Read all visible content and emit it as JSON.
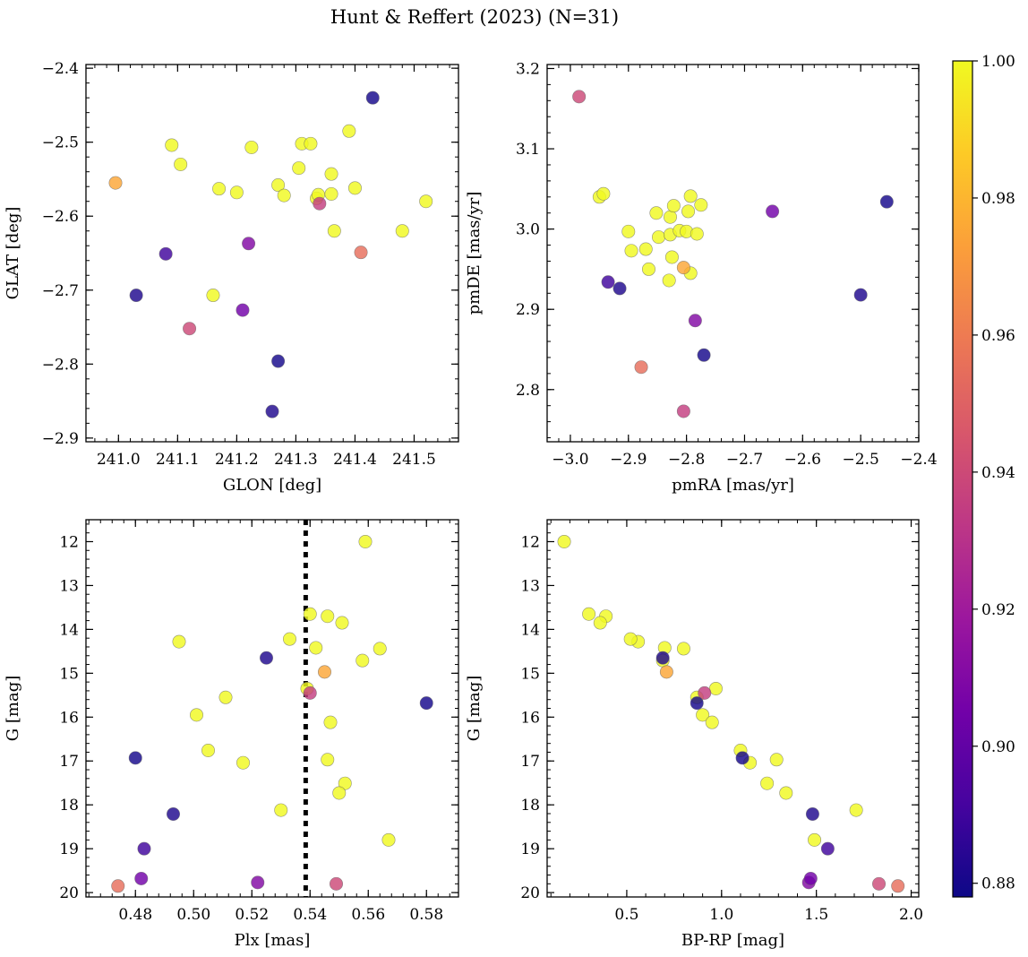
{
  "chart_data": {
    "title": "Hunt & Reffert (2023) (N=31)",
    "type": "scatter",
    "colormap": "plasma",
    "colorbar": {
      "range": [
        0.878,
        1.0
      ],
      "ticks": [
        0.88,
        0.9,
        0.92,
        0.94,
        0.96,
        0.98,
        1.0
      ],
      "tick_labels": [
        "0.88",
        "0.90",
        "0.92",
        "0.94",
        "0.96",
        "0.98",
        "1.00"
      ],
      "placement": "right"
    },
    "plasma_stops": [
      "#0d0887",
      "#46039f",
      "#7201a8",
      "#9c179e",
      "#bd3786",
      "#d8576b",
      "#ed7953",
      "#fb9f3a",
      "#fdca26",
      "#f0f921"
    ],
    "points": [
      {
        "glon": 241.43,
        "glat": -2.44,
        "pmra": -2.455,
        "pmde": 3.034,
        "plx": 0.58,
        "g": 15.68,
        "bprp": 0.87,
        "prob": 0.88
      },
      {
        "glon": 241.26,
        "glat": -2.864,
        "pmra": -2.5,
        "pmde": 2.918,
        "plx": 0.493,
        "g": 18.21,
        "bprp": 1.48,
        "prob": 0.882
      },
      {
        "glon": 241.27,
        "glat": -2.796,
        "pmra": -2.77,
        "pmde": 2.843,
        "plx": 0.48,
        "g": 16.93,
        "bprp": 1.11,
        "prob": 0.88
      },
      {
        "glon": 241.03,
        "glat": -2.707,
        "pmra": -2.915,
        "pmde": 2.926,
        "plx": 0.525,
        "g": 14.65,
        "bprp": 0.69,
        "prob": 0.882
      },
      {
        "glon": 241.08,
        "glat": -2.651,
        "pmra": -2.935,
        "pmde": 2.934,
        "plx": 0.483,
        "g": 19.0,
        "bprp": 1.56,
        "prob": 0.89
      },
      {
        "glon": 241.21,
        "glat": -2.727,
        "pmra": -2.652,
        "pmde": 3.022,
        "plx": 0.482,
        "g": 19.68,
        "bprp": 1.47,
        "prob": 0.905
      },
      {
        "glon": 241.22,
        "glat": -2.637,
        "pmra": -2.785,
        "pmde": 2.886,
        "plx": 0.522,
        "g": 19.77,
        "bprp": 1.46,
        "prob": 0.91
      },
      {
        "glon": 241.34,
        "glat": -2.583,
        "pmra": -2.805,
        "pmde": 2.773,
        "plx": 0.54,
        "g": 15.45,
        "bprp": 0.91,
        "prob": 0.935
      },
      {
        "glon": 241.12,
        "glat": -2.752,
        "pmra": -2.985,
        "pmde": 3.165,
        "plx": 0.549,
        "g": 19.8,
        "bprp": 1.83,
        "prob": 0.94
      },
      {
        "glon": 241.41,
        "glat": -2.649,
        "pmra": -2.878,
        "pmde": 2.828,
        "plx": 0.474,
        "g": 19.85,
        "bprp": 1.93,
        "prob": 0.955
      },
      {
        "glon": 240.995,
        "glat": -2.555,
        "pmra": -2.805,
        "pmde": 2.952,
        "plx": 0.545,
        "g": 14.97,
        "bprp": 0.71,
        "prob": 0.975
      },
      {
        "glon": 241.09,
        "glat": -2.504,
        "pmra": -2.95,
        "pmde": 3.04,
        "plx": 0.559,
        "g": 12.0,
        "bprp": 0.17,
        "prob": 1.0
      },
      {
        "glon": 241.105,
        "glat": -2.53,
        "pmra": -2.943,
        "pmde": 3.044,
        "plx": 0.54,
        "g": 13.65,
        "bprp": 0.3,
        "prob": 1.0
      },
      {
        "glon": 241.16,
        "glat": -2.707,
        "pmra": -2.9,
        "pmde": 2.997,
        "plx": 0.546,
        "g": 13.7,
        "bprp": 0.39,
        "prob": 1.0
      },
      {
        "glon": 241.17,
        "glat": -2.563,
        "pmra": -2.895,
        "pmde": 2.973,
        "plx": 0.551,
        "g": 13.85,
        "bprp": 0.36,
        "prob": 1.0
      },
      {
        "glon": 241.2,
        "glat": -2.568,
        "pmra": -2.87,
        "pmde": 2.975,
        "plx": 0.495,
        "g": 14.28,
        "bprp": 0.56,
        "prob": 1.0
      },
      {
        "glon": 241.225,
        "glat": -2.507,
        "pmra": -2.865,
        "pmde": 2.95,
        "plx": 0.533,
        "g": 14.22,
        "bprp": 0.52,
        "prob": 1.0
      },
      {
        "glon": 241.27,
        "glat": -2.558,
        "pmra": -2.852,
        "pmde": 3.02,
        "plx": 0.542,
        "g": 14.42,
        "bprp": 0.7,
        "prob": 1.0
      },
      {
        "glon": 241.28,
        "glat": -2.572,
        "pmra": -2.848,
        "pmde": 2.99,
        "plx": 0.564,
        "g": 14.44,
        "bprp": 0.8,
        "prob": 1.0
      },
      {
        "glon": 241.305,
        "glat": -2.535,
        "pmra": -2.83,
        "pmde": 2.936,
        "plx": 0.558,
        "g": 14.71,
        "bprp": 0.69,
        "prob": 1.0
      },
      {
        "glon": 241.31,
        "glat": -2.502,
        "pmra": -2.828,
        "pmde": 2.993,
        "plx": 0.539,
        "g": 15.35,
        "bprp": 0.97,
        "prob": 1.0
      },
      {
        "glon": 241.325,
        "glat": -2.502,
        "pmra": -2.828,
        "pmde": 3.015,
        "plx": 0.511,
        "g": 15.55,
        "bprp": 0.87,
        "prob": 1.0
      },
      {
        "glon": 241.335,
        "glat": -2.576,
        "pmra": -2.825,
        "pmde": 2.965,
        "plx": 0.501,
        "g": 15.95,
        "bprp": 0.9,
        "prob": 1.0
      },
      {
        "glon": 241.338,
        "glat": -2.571,
        "pmra": -2.822,
        "pmde": 3.029,
        "plx": 0.547,
        "g": 16.12,
        "bprp": 0.95,
        "prob": 1.0
      },
      {
        "glon": 241.36,
        "glat": -2.543,
        "pmra": -2.812,
        "pmde": 2.998,
        "plx": 0.505,
        "g": 16.76,
        "bprp": 1.1,
        "prob": 1.0
      },
      {
        "glon": 241.36,
        "glat": -2.57,
        "pmra": -2.8,
        "pmde": 2.997,
        "plx": 0.546,
        "g": 16.97,
        "bprp": 1.29,
        "prob": 1.0
      },
      {
        "glon": 241.365,
        "glat": -2.62,
        "pmra": -2.797,
        "pmde": 3.022,
        "plx": 0.517,
        "g": 17.04,
        "bprp": 1.15,
        "prob": 1.0
      },
      {
        "glon": 241.39,
        "glat": -2.485,
        "pmra": -2.793,
        "pmde": 3.041,
        "plx": 0.552,
        "g": 17.51,
        "bprp": 1.24,
        "prob": 1.0
      },
      {
        "glon": 241.4,
        "glat": -2.562,
        "pmra": -2.793,
        "pmde": 2.945,
        "plx": 0.55,
        "g": 17.73,
        "bprp": 1.34,
        "prob": 1.0
      },
      {
        "glon": 241.48,
        "glat": -2.62,
        "pmra": -2.782,
        "pmde": 2.994,
        "plx": 0.53,
        "g": 18.12,
        "bprp": 1.71,
        "prob": 1.0
      },
      {
        "glon": 241.52,
        "glat": -2.58,
        "pmra": -2.775,
        "pmde": 3.03,
        "plx": 0.567,
        "g": 18.8,
        "bprp": 1.49,
        "prob": 1.0
      }
    ],
    "panels": [
      {
        "id": "glon-glat",
        "x": "glon",
        "y": "glat",
        "xlabel": "GLON [deg]",
        "ylabel": "GLAT [deg]",
        "xlim": [
          240.945,
          241.575
        ],
        "ylim": [
          -2.905,
          -2.395
        ],
        "xticks": [
          241.0,
          241.1,
          241.2,
          241.3,
          241.4,
          241.5
        ],
        "xtick_labels": [
          "241.0",
          "241.1",
          "241.2",
          "241.3",
          "241.4",
          "241.5"
        ],
        "yticks": [
          -2.4,
          -2.5,
          -2.6,
          -2.7,
          -2.8,
          -2.9
        ],
        "ytick_labels": [
          "−2.4",
          "−2.5",
          "−2.6",
          "−2.7",
          "−2.8",
          "−2.9"
        ],
        "xminor": 0.02,
        "yminor": 0.02,
        "invert_y": false
      },
      {
        "id": "pm",
        "x": "pmra",
        "y": "pmde",
        "xlabel": "pmRA [mas/yr]",
        "ylabel": "pmDE [mas/yr]",
        "xlim": [
          -3.04,
          -2.4
        ],
        "ylim": [
          2.735,
          3.205
        ],
        "xticks": [
          -3.0,
          -2.9,
          -2.8,
          -2.7,
          -2.6,
          -2.5,
          -2.4
        ],
        "xtick_labels": [
          "−3.0",
          "−2.9",
          "−2.8",
          "−2.7",
          "−2.6",
          "−2.5",
          "−2.4"
        ],
        "yticks": [
          2.8,
          2.9,
          3.0,
          3.1,
          3.2
        ],
        "ytick_labels": [
          "2.8",
          "2.9",
          "3.0",
          "3.1",
          "3.2"
        ],
        "xminor": 0.02,
        "yminor": 0.02,
        "invert_y": false
      },
      {
        "id": "plx-g",
        "x": "plx",
        "y": "g",
        "xlabel": "Plx [mas]",
        "ylabel": "G [mag]",
        "xlim": [
          0.463,
          0.591
        ],
        "ylim": [
          11.5,
          20.1
        ],
        "xticks": [
          0.48,
          0.5,
          0.52,
          0.54,
          0.56,
          0.58
        ],
        "xtick_labels": [
          "0.48",
          "0.50",
          "0.52",
          "0.54",
          "0.56",
          "0.58"
        ],
        "yticks": [
          12,
          13,
          14,
          15,
          16,
          17,
          18,
          19,
          20
        ],
        "ytick_labels": [
          "12",
          "13",
          "14",
          "15",
          "16",
          "17",
          "18",
          "19",
          "20"
        ],
        "xminor": 0.004,
        "yminor": 0.2,
        "invert_y": true,
        "vline": 0.5385
      },
      {
        "id": "cmd",
        "x": "bprp",
        "y": "g",
        "xlabel": "BP-RP [mag]",
        "ylabel": "G [mag]",
        "xlim": [
          0.08,
          2.04
        ],
        "ylim": [
          11.5,
          20.1
        ],
        "xticks": [
          0.5,
          1.0,
          1.5,
          2.0
        ],
        "xtick_labels": [
          "0.5",
          "1.0",
          "1.5",
          "2.0"
        ],
        "yticks": [
          12,
          13,
          14,
          15,
          16,
          17,
          18,
          19,
          20
        ],
        "ytick_labels": [
          "12",
          "13",
          "14",
          "15",
          "16",
          "17",
          "18",
          "19",
          "20"
        ],
        "xminor": 0.1,
        "yminor": 0.2,
        "invert_y": true
      }
    ]
  }
}
